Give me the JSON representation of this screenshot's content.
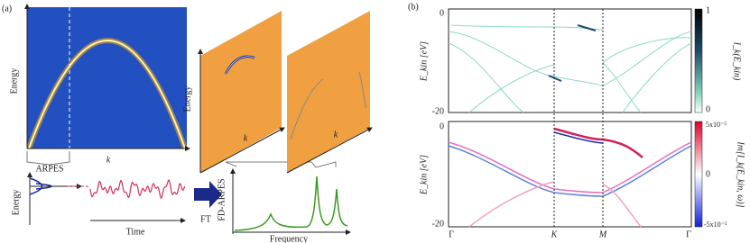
{
  "panel_a": {
    "label": "(a)",
    "heatmap": {
      "y_label": "Energy",
      "x_label": "k"
    },
    "arpes_label": "ARPES",
    "trace": {
      "y_label": "Energy",
      "x_label": "Time"
    },
    "ft_label": "FT",
    "spectrum": {
      "y_label": "FD-ARPES",
      "x_label": "Frequency"
    },
    "tilted": {
      "y_label": "Energy",
      "x_labels": [
        "k",
        "k"
      ]
    }
  },
  "panel_b": {
    "label": "(b)",
    "top": {
      "y_label": "E_kin [eV]",
      "yticks": [
        "0",
        "-20"
      ],
      "colorbar_ticks": [
        "1",
        "0"
      ],
      "colorbar_label": "I_k(E_kin)"
    },
    "bottom": {
      "y_label": "E_kin [eV]",
      "yticks": [
        "0",
        "-20"
      ],
      "colorbar_ticks": [
        "5x10⁻⁵",
        "0",
        "-5x10⁻⁵"
      ],
      "colorbar_label": "Im[I_k(E_kin, ω)]"
    },
    "xticks": [
      "Γ",
      "K",
      "M",
      "Γ"
    ]
  }
}
